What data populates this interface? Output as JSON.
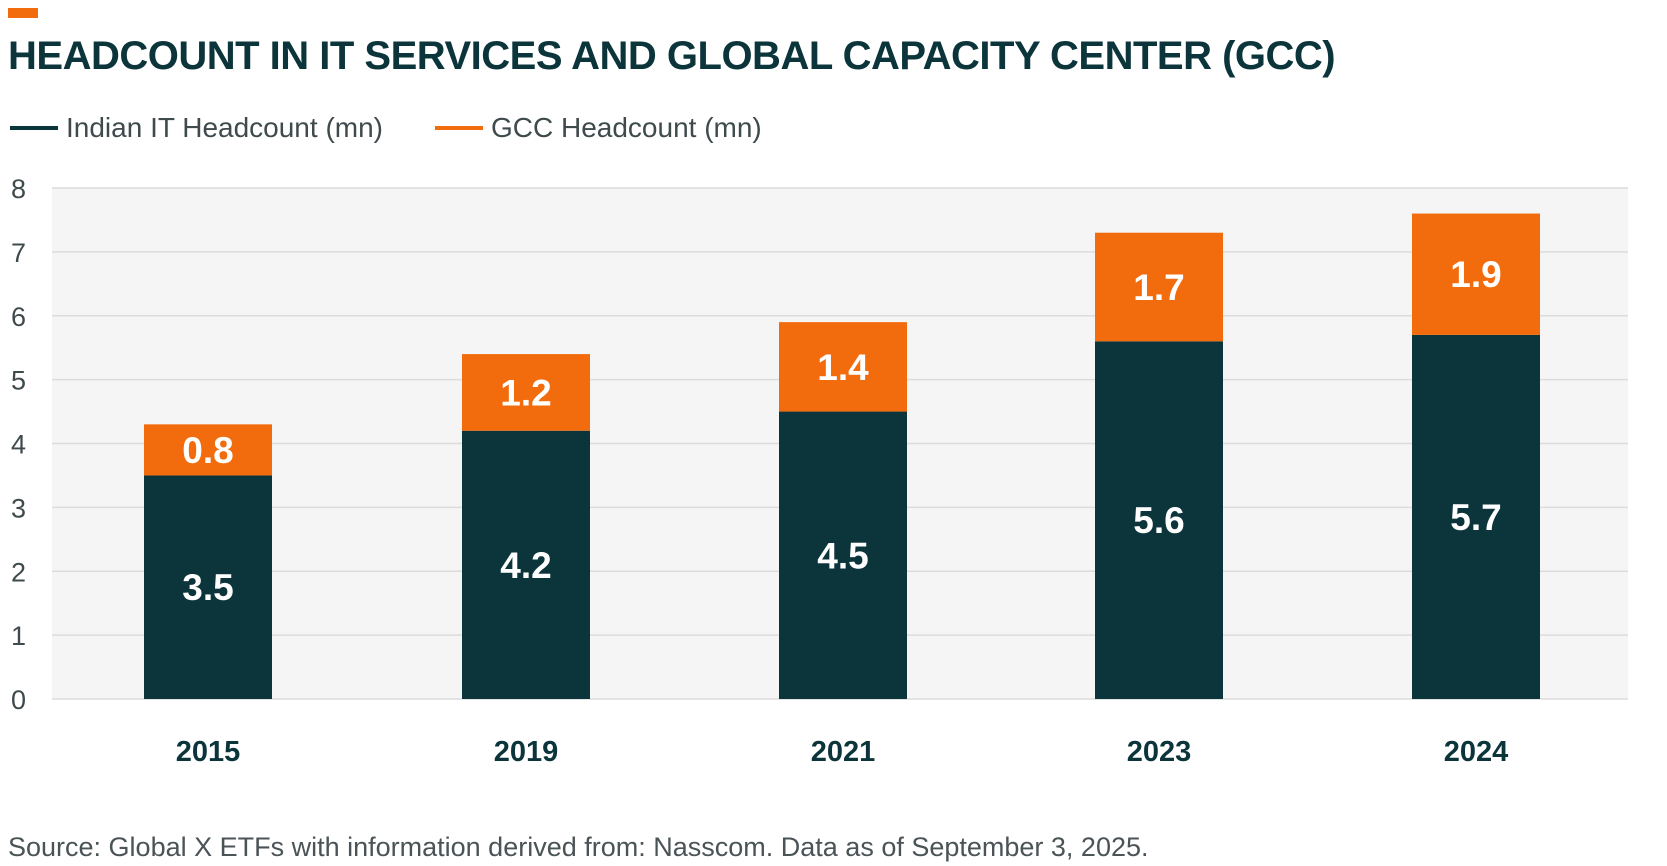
{
  "header": {
    "title": "HEADCOUNT IN IT SERVICES AND GLOBAL CAPACITY CENTER (GCC)"
  },
  "legend": [
    {
      "label": "Indian IT Headcount (mn)",
      "color": "#0b343b"
    },
    {
      "label": "GCC Headcount (mn)",
      "color": "#f26c0d"
    }
  ],
  "source": "Source: Global X ETFs with information derived from: Nasscom. Data as of September 3, 2025.",
  "chart_data": {
    "type": "bar",
    "stacked": true,
    "title": "HEADCOUNT IN IT SERVICES AND GLOBAL CAPACITY CENTER (GCC)",
    "xlabel": "",
    "ylabel": "",
    "ylim": [
      0,
      8
    ],
    "yticks": [
      0,
      1,
      2,
      3,
      4,
      5,
      6,
      7,
      8
    ],
    "grid": true,
    "legend_position": "top-left",
    "categories": [
      "2015",
      "2019",
      "2021",
      "2023",
      "2024"
    ],
    "series": [
      {
        "name": "Indian IT Headcount (mn)",
        "color": "#0b343b",
        "values": [
          3.5,
          4.2,
          4.5,
          5.6,
          5.7
        ]
      },
      {
        "name": "GCC Headcount (mn)",
        "color": "#f26c0d",
        "values": [
          0.8,
          1.2,
          1.4,
          1.7,
          1.9
        ]
      }
    ]
  }
}
